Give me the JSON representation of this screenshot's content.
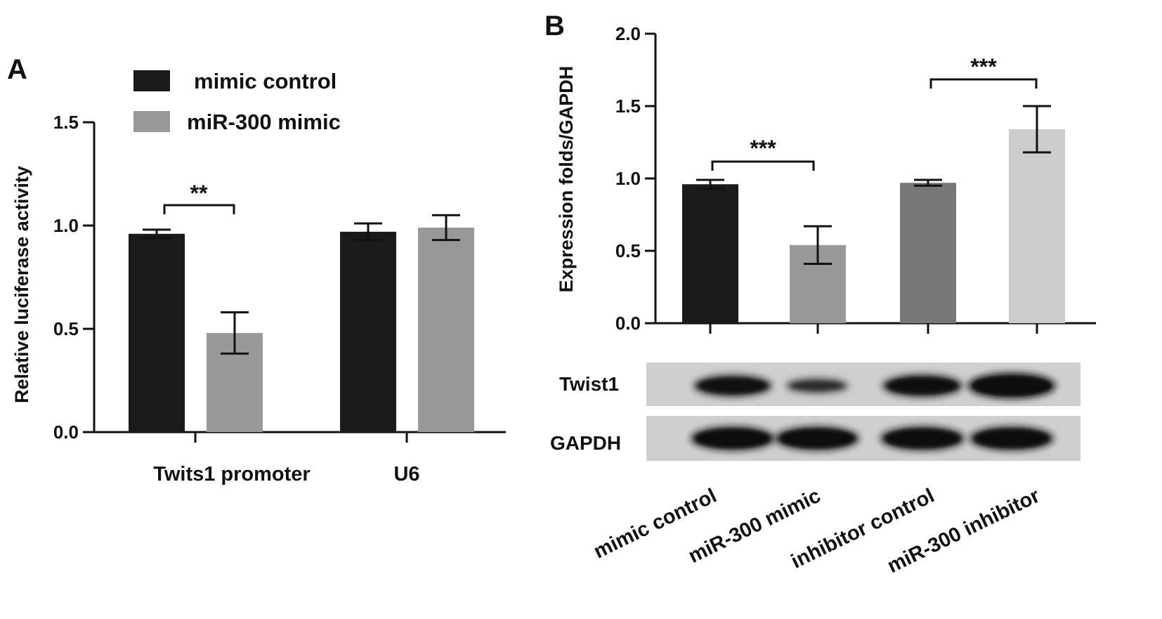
{
  "chart_data": [
    {
      "panel": "A",
      "type": "bar",
      "ylabel": "Relative luciferase activity",
      "xlabel": "",
      "ylim": [
        0,
        1.5
      ],
      "yticks": [
        "0.0",
        "0.5",
        "1.0",
        "1.5"
      ],
      "categories": [
        "Twits1 promoter",
        "U6"
      ],
      "legend": {
        "placement": "top",
        "entries": [
          "mimic control",
          "miR-300 mimic"
        ]
      },
      "series": [
        {
          "name": "mimic control",
          "color": "#1a1a1a",
          "values": [
            0.96,
            0.97
          ],
          "errors": [
            0.02,
            0.04
          ]
        },
        {
          "name": "miR-300 mimic",
          "color": "#999999",
          "values": [
            0.48,
            0.99
          ],
          "errors": [
            0.1,
            0.06
          ]
        }
      ],
      "significance": [
        {
          "category_index": 0,
          "label": "**"
        }
      ]
    },
    {
      "panel": "B",
      "type": "bar",
      "ylabel": "Expression folds/GAPDH",
      "xlabel": "",
      "ylim": [
        0,
        2.0
      ],
      "yticks": [
        "0.0",
        "0.5",
        "1.0",
        "1.5",
        "2.0"
      ],
      "categories": [
        "mimic control",
        "miR-300 mimic",
        "inhibitor control",
        "miR-300 inhibitor"
      ],
      "values": [
        0.96,
        0.54,
        0.97,
        1.34
      ],
      "errors": [
        0.03,
        0.13,
        0.02,
        0.16
      ],
      "colors": [
        "#1a1a1a",
        "#999999",
        "#777777",
        "#cccccc"
      ],
      "significance": [
        {
          "from": 0,
          "to": 1,
          "label": "***"
        },
        {
          "from": 2,
          "to": 3,
          "label": "***"
        }
      ],
      "blot": {
        "rows": [
          {
            "label": "Twist1",
            "intensities": [
              0.75,
              0.35,
              0.8,
              1.0
            ]
          },
          {
            "label": "GAPDH",
            "intensities": [
              0.9,
              0.9,
              0.9,
              0.9
            ]
          }
        ]
      }
    }
  ]
}
